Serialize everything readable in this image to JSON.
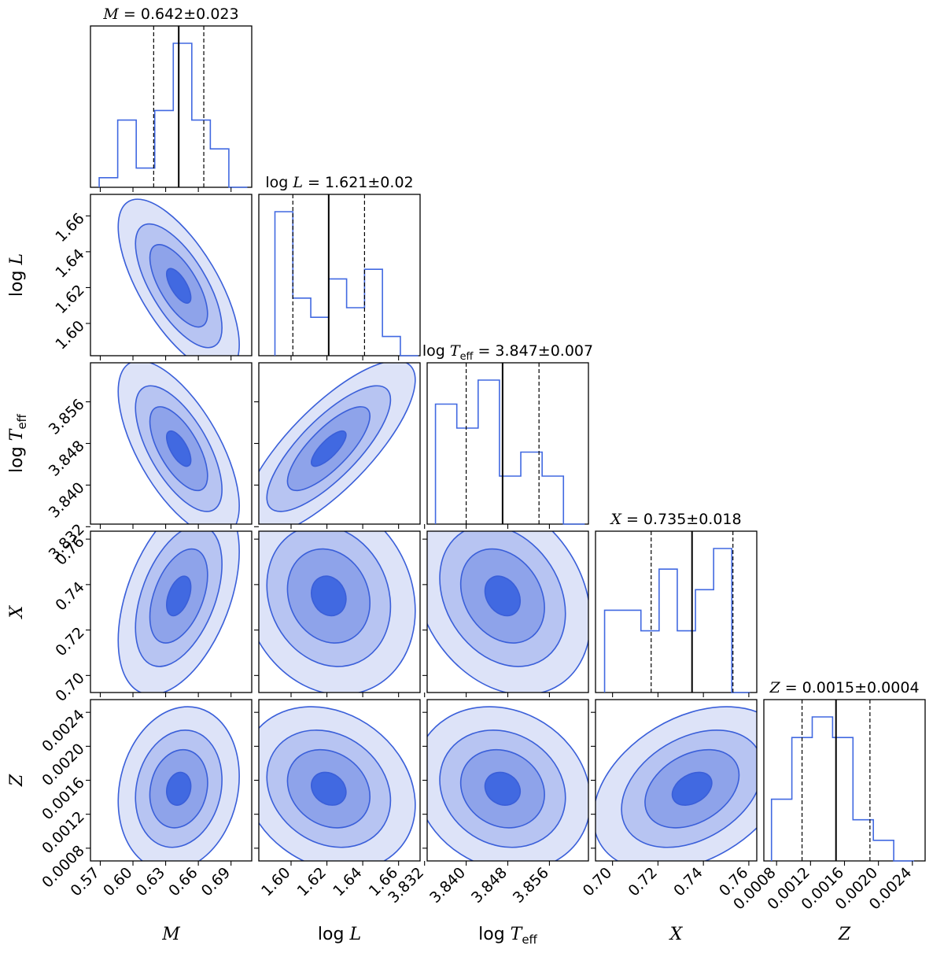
{
  "colors": {
    "line": "#4169e1",
    "levels": [
      "#dde3f8",
      "#b7c4f2",
      "#8ea3ea",
      "#4169e1"
    ]
  },
  "params": [
    {
      "key": "M",
      "label_it": "M",
      "label_rm": ""
    },
    {
      "key": "logL",
      "label_it": "L",
      "label_rm": "log "
    },
    {
      "key": "logTeff",
      "label_it": "T",
      "label_rm": "log ",
      "label_sub": "eff"
    },
    {
      "key": "X",
      "label_it": "X",
      "label_rm": ""
    },
    {
      "key": "Z",
      "label_it": "Z",
      "label_rm": ""
    }
  ],
  "titles": [
    {
      "value": "= 0.642±0.023"
    },
    {
      "value": "= 1.621±0.02"
    },
    {
      "value": "= 3.847±0.007"
    },
    {
      "value": "= 0.735±0.018"
    },
    {
      "value": "= 0.0015±0.0004"
    }
  ],
  "chart_data": {
    "type": "corner",
    "ranges": {
      "M": [
        0.561,
        0.709
      ],
      "logL": [
        1.582,
        1.672
      ],
      "logTeff": [
        3.8325,
        3.8635
      ],
      "X": [
        0.6925,
        0.7635
      ],
      "Z": [
        0.00065,
        0.00255
      ]
    },
    "ticks": {
      "M": [
        "0.57",
        "0.60",
        "0.63",
        "0.66",
        "0.69"
      ],
      "logL": [
        "1.60",
        "1.62",
        "1.64",
        "1.66"
      ],
      "logTeff": [
        "3.832",
        "3.840",
        "3.848",
        "3.856"
      ],
      "X": [
        "0.70",
        "0.72",
        "0.74",
        "0.76"
      ],
      "Z": [
        "0.0008",
        "0.0012",
        "0.0016",
        "0.0020",
        "0.0024"
      ]
    },
    "histograms": [
      {
        "param": "M",
        "edges": [
          0.569,
          0.586,
          0.603,
          0.62,
          0.637,
          0.654,
          0.671,
          0.688,
          0.705
        ],
        "counts": [
          1,
          7,
          2,
          8,
          15,
          7,
          4,
          0
        ],
        "median": 0.642,
        "q16": 0.619,
        "q84": 0.665
      },
      {
        "param": "logL",
        "edges": [
          1.591,
          1.601,
          1.611,
          1.621,
          1.631,
          1.641,
          1.651,
          1.661,
          1.671
        ],
        "counts": [
          15,
          6,
          4,
          8,
          5,
          9,
          2,
          0
        ],
        "median": 1.621,
        "q16": 1.601,
        "q84": 1.641
      },
      {
        "param": "logTeff",
        "edges": [
          3.8341,
          3.8382,
          3.8423,
          3.8464,
          3.8505,
          3.8546,
          3.8587,
          3.8628
        ],
        "counts": [
          5,
          4,
          6,
          2,
          3,
          2,
          0
        ],
        "median": 3.847,
        "q16": 3.84,
        "q84": 3.854
      },
      {
        "param": "X",
        "edges": [
          0.6965,
          0.7045,
          0.7125,
          0.7205,
          0.7285,
          0.7365,
          0.7445,
          0.7525,
          0.7605
        ],
        "counts": [
          4,
          4,
          3,
          6,
          3,
          5,
          7,
          0
        ],
        "median": 0.735,
        "q16": 0.717,
        "q84": 0.753
      },
      {
        "param": "Z",
        "edges": [
          0.00074,
          0.00098,
          0.00122,
          0.00146,
          0.0017,
          0.00194,
          0.00218,
          0.00242
        ],
        "counts": [
          3,
          6,
          7,
          6,
          2,
          1,
          0
        ],
        "median": 0.0015,
        "q16": 0.0011,
        "q84": 0.0019
      }
    ],
    "contour_levels": 4,
    "correlations": [
      {
        "x": "M",
        "y": "logL",
        "rho": -0.68
      },
      {
        "x": "M",
        "y": "logTeff",
        "rho": -0.65
      },
      {
        "x": "logL",
        "y": "logTeff",
        "rho": 0.78
      },
      {
        "x": "M",
        "y": "X",
        "rho": 0.45
      },
      {
        "x": "logL",
        "y": "X",
        "rho": -0.15
      },
      {
        "x": "logTeff",
        "y": "X",
        "rho": -0.25
      },
      {
        "x": "M",
        "y": "Z",
        "rho": 0.15
      },
      {
        "x": "logL",
        "y": "Z",
        "rho": -0.2
      },
      {
        "x": "logTeff",
        "y": "Z",
        "rho": -0.15
      },
      {
        "x": "X",
        "y": "Z",
        "rho": 0.35
      }
    ]
  }
}
